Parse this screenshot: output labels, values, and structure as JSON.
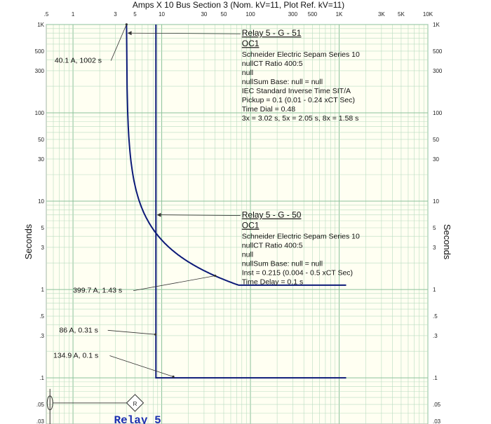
{
  "chart_data": {
    "type": "line",
    "title": "Amps  X  10   Bus Section 3 (Nom. kV=11, Plot Ref. kV=11)",
    "ylabel_left": "Seconds",
    "ylabel_right": "Seconds",
    "x_scale": "log",
    "y_scale": "log",
    "xlim": [
      0.5,
      10000
    ],
    "ylim": [
      0.03,
      1000
    ],
    "grid": true,
    "x_tick_labels": [
      {
        "v": 0.5,
        "t": ".5"
      },
      {
        "v": 1,
        "t": "1"
      },
      {
        "v": 3,
        "t": "3"
      },
      {
        "v": 5,
        "t": "5"
      },
      {
        "v": 10,
        "t": "10"
      },
      {
        "v": 30,
        "t": "30"
      },
      {
        "v": 50,
        "t": "50"
      },
      {
        "v": 100,
        "t": "100"
      },
      {
        "v": 300,
        "t": "300"
      },
      {
        "v": 500,
        "t": "500"
      },
      {
        "v": 1000,
        "t": "1K"
      },
      {
        "v": 3000,
        "t": "3K"
      },
      {
        "v": 5000,
        "t": "5K"
      },
      {
        "v": 10000,
        "t": "10K"
      }
    ],
    "y_tick_labels": [
      {
        "v": 1000,
        "t": "1K"
      },
      {
        "v": 500,
        "t": "500"
      },
      {
        "v": 300,
        "t": "300"
      },
      {
        "v": 100,
        "t": "100"
      },
      {
        "v": 50,
        "t": "50"
      },
      {
        "v": 30,
        "t": "30"
      },
      {
        "v": 10,
        "t": "10"
      },
      {
        "v": 5,
        "t": "5"
      },
      {
        "v": 3,
        "t": "3"
      },
      {
        "v": 1,
        "t": "1"
      },
      {
        "v": 0.5,
        "t": ".5"
      },
      {
        "v": 0.3,
        "t": ".3"
      },
      {
        "v": 0.1,
        "t": ".1"
      },
      {
        "v": 0.05,
        "t": ".05"
      },
      {
        "v": 0.03,
        "t": ".03"
      }
    ],
    "series": [
      {
        "kind": "iec-standard-inverse",
        "color": "#0c1a78",
        "pickup_x": 4.0,
        "time_dial": 0.48,
        "curve_x_range": [
          4.01,
          80
        ],
        "flat_time": 1.12,
        "flat_to_x": 1200
      },
      {
        "kind": "instantaneous",
        "color": "#0c1a78",
        "inst_x": 8.6,
        "inst_time": 0.1,
        "top_time": 1000,
        "to_x": 1200
      }
    ],
    "annotations": [
      {
        "x": 80,
        "y": 800,
        "heading": [
          "Relay 5 - G - 51",
          "OC1"
        ],
        "lines": [
          "Schneider Electric Sepam Series 10",
          "nullCT Ratio 400:5",
          "null",
          "nullSum Base: null = null",
          "IEC Standard Inverse Time SIT/A",
          "Pickup = 0.1 (0.01 - 0.24  xCT Sec)",
          "Time Dial = 0.48",
          "3x = 3.02 s, 5x = 2.05 s, 8x = 1.58 s"
        ],
        "arrow_to": {
          "x": 4.1,
          "y": 800
        }
      },
      {
        "x": 80,
        "y": 7.0,
        "heading": [
          "Relay 5 - G - 50",
          "OC1"
        ],
        "lines": [
          "Schneider Electric Sepam Series 10",
          "nullCT Ratio 400:5",
          "null",
          "nullSum Base: null = null",
          "Inst = 0.215 (0.004 - 0.5  xCT Sec)",
          "Time Delay = 0.1 s"
        ],
        "arrow_to": {
          "x": 8.8,
          "y": 7.0
        }
      }
    ],
    "callouts": [
      {
        "label": "40.1 A, 1002 s",
        "x": 0.62,
        "y": 390,
        "to": {
          "x": 4.01,
          "y": 1002
        }
      },
      {
        "label": "399.7 A, 1.43 s",
        "x": 1.0,
        "y": 0.97,
        "to": {
          "x": 40,
          "y": 1.43
        }
      },
      {
        "label": "86 A, 0.31 s",
        "x": 0.7,
        "y": 0.345,
        "to": {
          "x": 8.5,
          "y": 0.31
        }
      },
      {
        "label": "134.9 A, 0.1 s",
        "x": 0.6,
        "y": 0.178,
        "to": {
          "x": 13.5,
          "y": 0.103
        }
      }
    ],
    "one_line": {
      "relay_label": "Relay 5",
      "relay_symbol": "R",
      "ct_x": 0.55,
      "relay_x": 5.0,
      "y": 0.052
    }
  }
}
